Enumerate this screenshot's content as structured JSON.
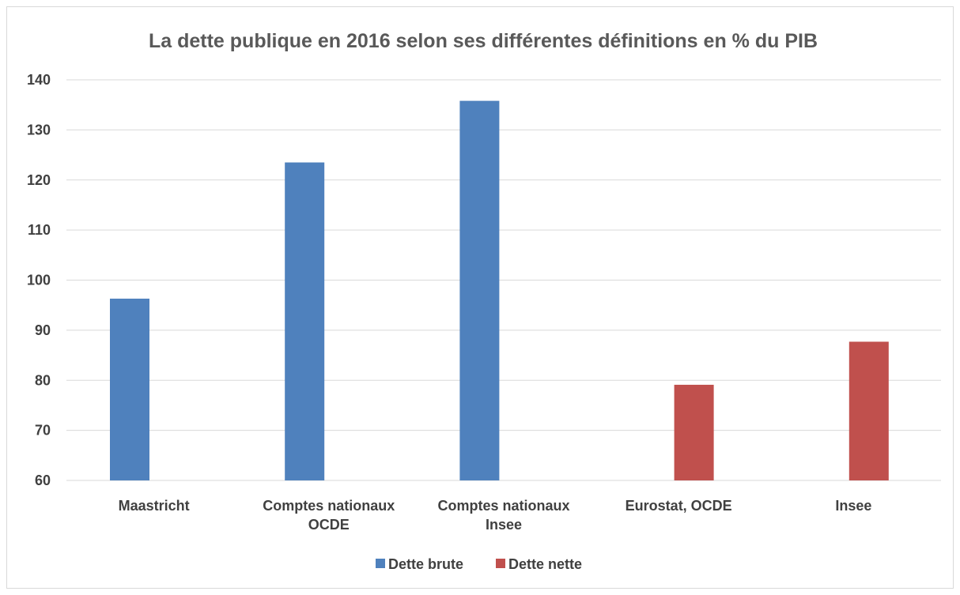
{
  "chart_data": {
    "type": "bar",
    "title": "La dette publique en 2016 selon ses différentes définitions en % du PIB",
    "categories": [
      [
        "Maastricht"
      ],
      [
        "Comptes nationaux",
        "OCDE"
      ],
      [
        "Comptes nationaux",
        "Insee"
      ],
      [
        "Eurostat, OCDE"
      ],
      [
        "Insee"
      ]
    ],
    "series": [
      {
        "name": "Dette brute",
        "color": "#4f81bd",
        "values": [
          96.3,
          123.5,
          135.8,
          null,
          null
        ]
      },
      {
        "name": "Dette  nette",
        "color": "#c0504d",
        "values": [
          null,
          null,
          null,
          79.1,
          87.7
        ]
      }
    ],
    "ylim": [
      60,
      140
    ],
    "yticks": [
      60,
      70,
      80,
      90,
      100,
      110,
      120,
      130,
      140
    ],
    "grid": true,
    "legend": "bottom",
    "xlabel": "",
    "ylabel": ""
  }
}
